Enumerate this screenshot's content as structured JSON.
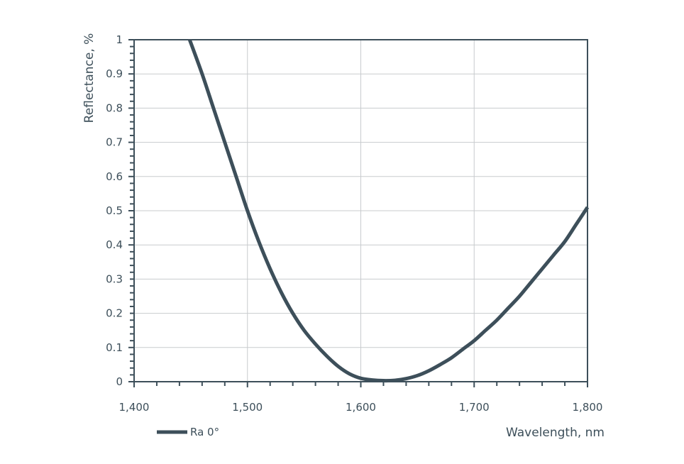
{
  "chart_data": {
    "type": "line",
    "title": "",
    "xlabel": "Wavelength, nm",
    "ylabel": "Reflectance, %",
    "xlim": [
      1400,
      1800
    ],
    "ylim": [
      0,
      1
    ],
    "x_ticks": [
      1400,
      1500,
      1600,
      1700,
      1800
    ],
    "x_tick_labels": [
      "1,400",
      "1,500",
      "1,600",
      "1,700",
      "1,800"
    ],
    "y_ticks": [
      0,
      0.1,
      0.2,
      0.3,
      0.4,
      0.5,
      0.6,
      0.7,
      0.8,
      0.9,
      1
    ],
    "y_tick_labels": [
      "0",
      "0.1",
      "0.2",
      "0.3",
      "0.4",
      "0.5",
      "0.6",
      "0.7",
      "0.8",
      "0.9",
      "1"
    ],
    "grid": true,
    "legend_position": "bottom-left",
    "colors": {
      "line": "#3d4f5a",
      "axis": "#3d4f5a",
      "grid": "#c8cbce"
    },
    "series": [
      {
        "name": "Ra 0°",
        "x": [
          1449,
          1460,
          1470,
          1480,
          1490,
          1500,
          1510,
          1520,
          1530,
          1540,
          1550,
          1560,
          1570,
          1580,
          1590,
          1600,
          1610,
          1620,
          1630,
          1640,
          1650,
          1660,
          1670,
          1680,
          1690,
          1700,
          1710,
          1720,
          1730,
          1740,
          1750,
          1760,
          1770,
          1780,
          1790,
          1800
        ],
        "y": [
          1.0,
          0.9,
          0.8,
          0.7,
          0.6,
          0.5,
          0.41,
          0.33,
          0.26,
          0.2,
          0.15,
          0.11,
          0.075,
          0.045,
          0.023,
          0.01,
          0.005,
          0.003,
          0.004,
          0.009,
          0.018,
          0.032,
          0.05,
          0.07,
          0.095,
          0.12,
          0.15,
          0.18,
          0.215,
          0.25,
          0.29,
          0.33,
          0.37,
          0.41,
          0.46,
          0.51
        ]
      }
    ]
  }
}
